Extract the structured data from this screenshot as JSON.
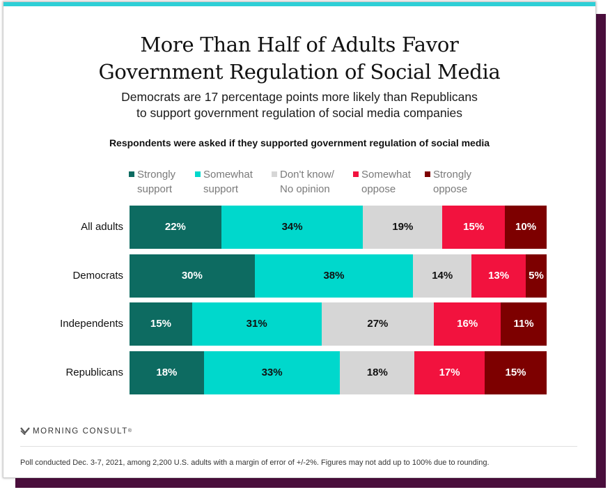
{
  "header": {
    "title_line1": "More Than Half of Adults Favor",
    "title_line2": "Government Regulation of Social Media",
    "subtitle_line1": "Democrats are 17 percentage points more likely than Republicans",
    "subtitle_line2": "to support government regulation of social media companies"
  },
  "colors": {
    "accent_bar": "#2ecfd6",
    "shadow_panel": "#4a0e3c",
    "strongly_support": "#0d6b61",
    "somewhat_support": "#00d8cc",
    "dont_know": "#d6d6d6",
    "somewhat_oppose": "#f2123e",
    "strongly_oppose": "#7d0000"
  },
  "chart_data": {
    "type": "bar",
    "orientation": "horizontal",
    "stacked": true,
    "title": "Respondents were asked if they supported government regulation of social media",
    "categories": [
      "All adults",
      "Democrats",
      "Independents",
      "Republicans"
    ],
    "series": [
      {
        "name": "Strongly support",
        "legend_lines": [
          "Strongly",
          "support"
        ],
        "color": "#0d6b61",
        "label_color": "#ffffff",
        "values": [
          22,
          30,
          15,
          18
        ]
      },
      {
        "name": "Somewhat support",
        "legend_lines": [
          "Somewhat",
          "support"
        ],
        "color": "#00d8cc",
        "label_color": "#111111",
        "values": [
          34,
          38,
          31,
          33
        ]
      },
      {
        "name": "Don't know/ No opinion",
        "legend_lines": [
          "Don't know/",
          "No opinion"
        ],
        "color": "#d6d6d6",
        "label_color": "#111111",
        "values": [
          19,
          14,
          27,
          18
        ]
      },
      {
        "name": "Somewhat oppose",
        "legend_lines": [
          "Somewhat",
          "oppose"
        ],
        "color": "#f2123e",
        "label_color": "#ffffff",
        "values": [
          15,
          13,
          16,
          17
        ]
      },
      {
        "name": "Strongly oppose",
        "legend_lines": [
          "Strongly",
          "oppose"
        ],
        "color": "#7d0000",
        "label_color": "#ffffff",
        "values": [
          10,
          5,
          11,
          15
        ]
      }
    ],
    "value_suffix": "%",
    "xlim": [
      0,
      100
    ],
    "legend_position": "top",
    "grid": false
  },
  "footer": {
    "brand": "MORNING CONSULT",
    "brand_mark": "®",
    "note": "Poll conducted Dec. 3-7, 2021, among 2,200 U.S. adults with a margin of error of +/-2%. Figures may not add up to 100% due to rounding."
  }
}
